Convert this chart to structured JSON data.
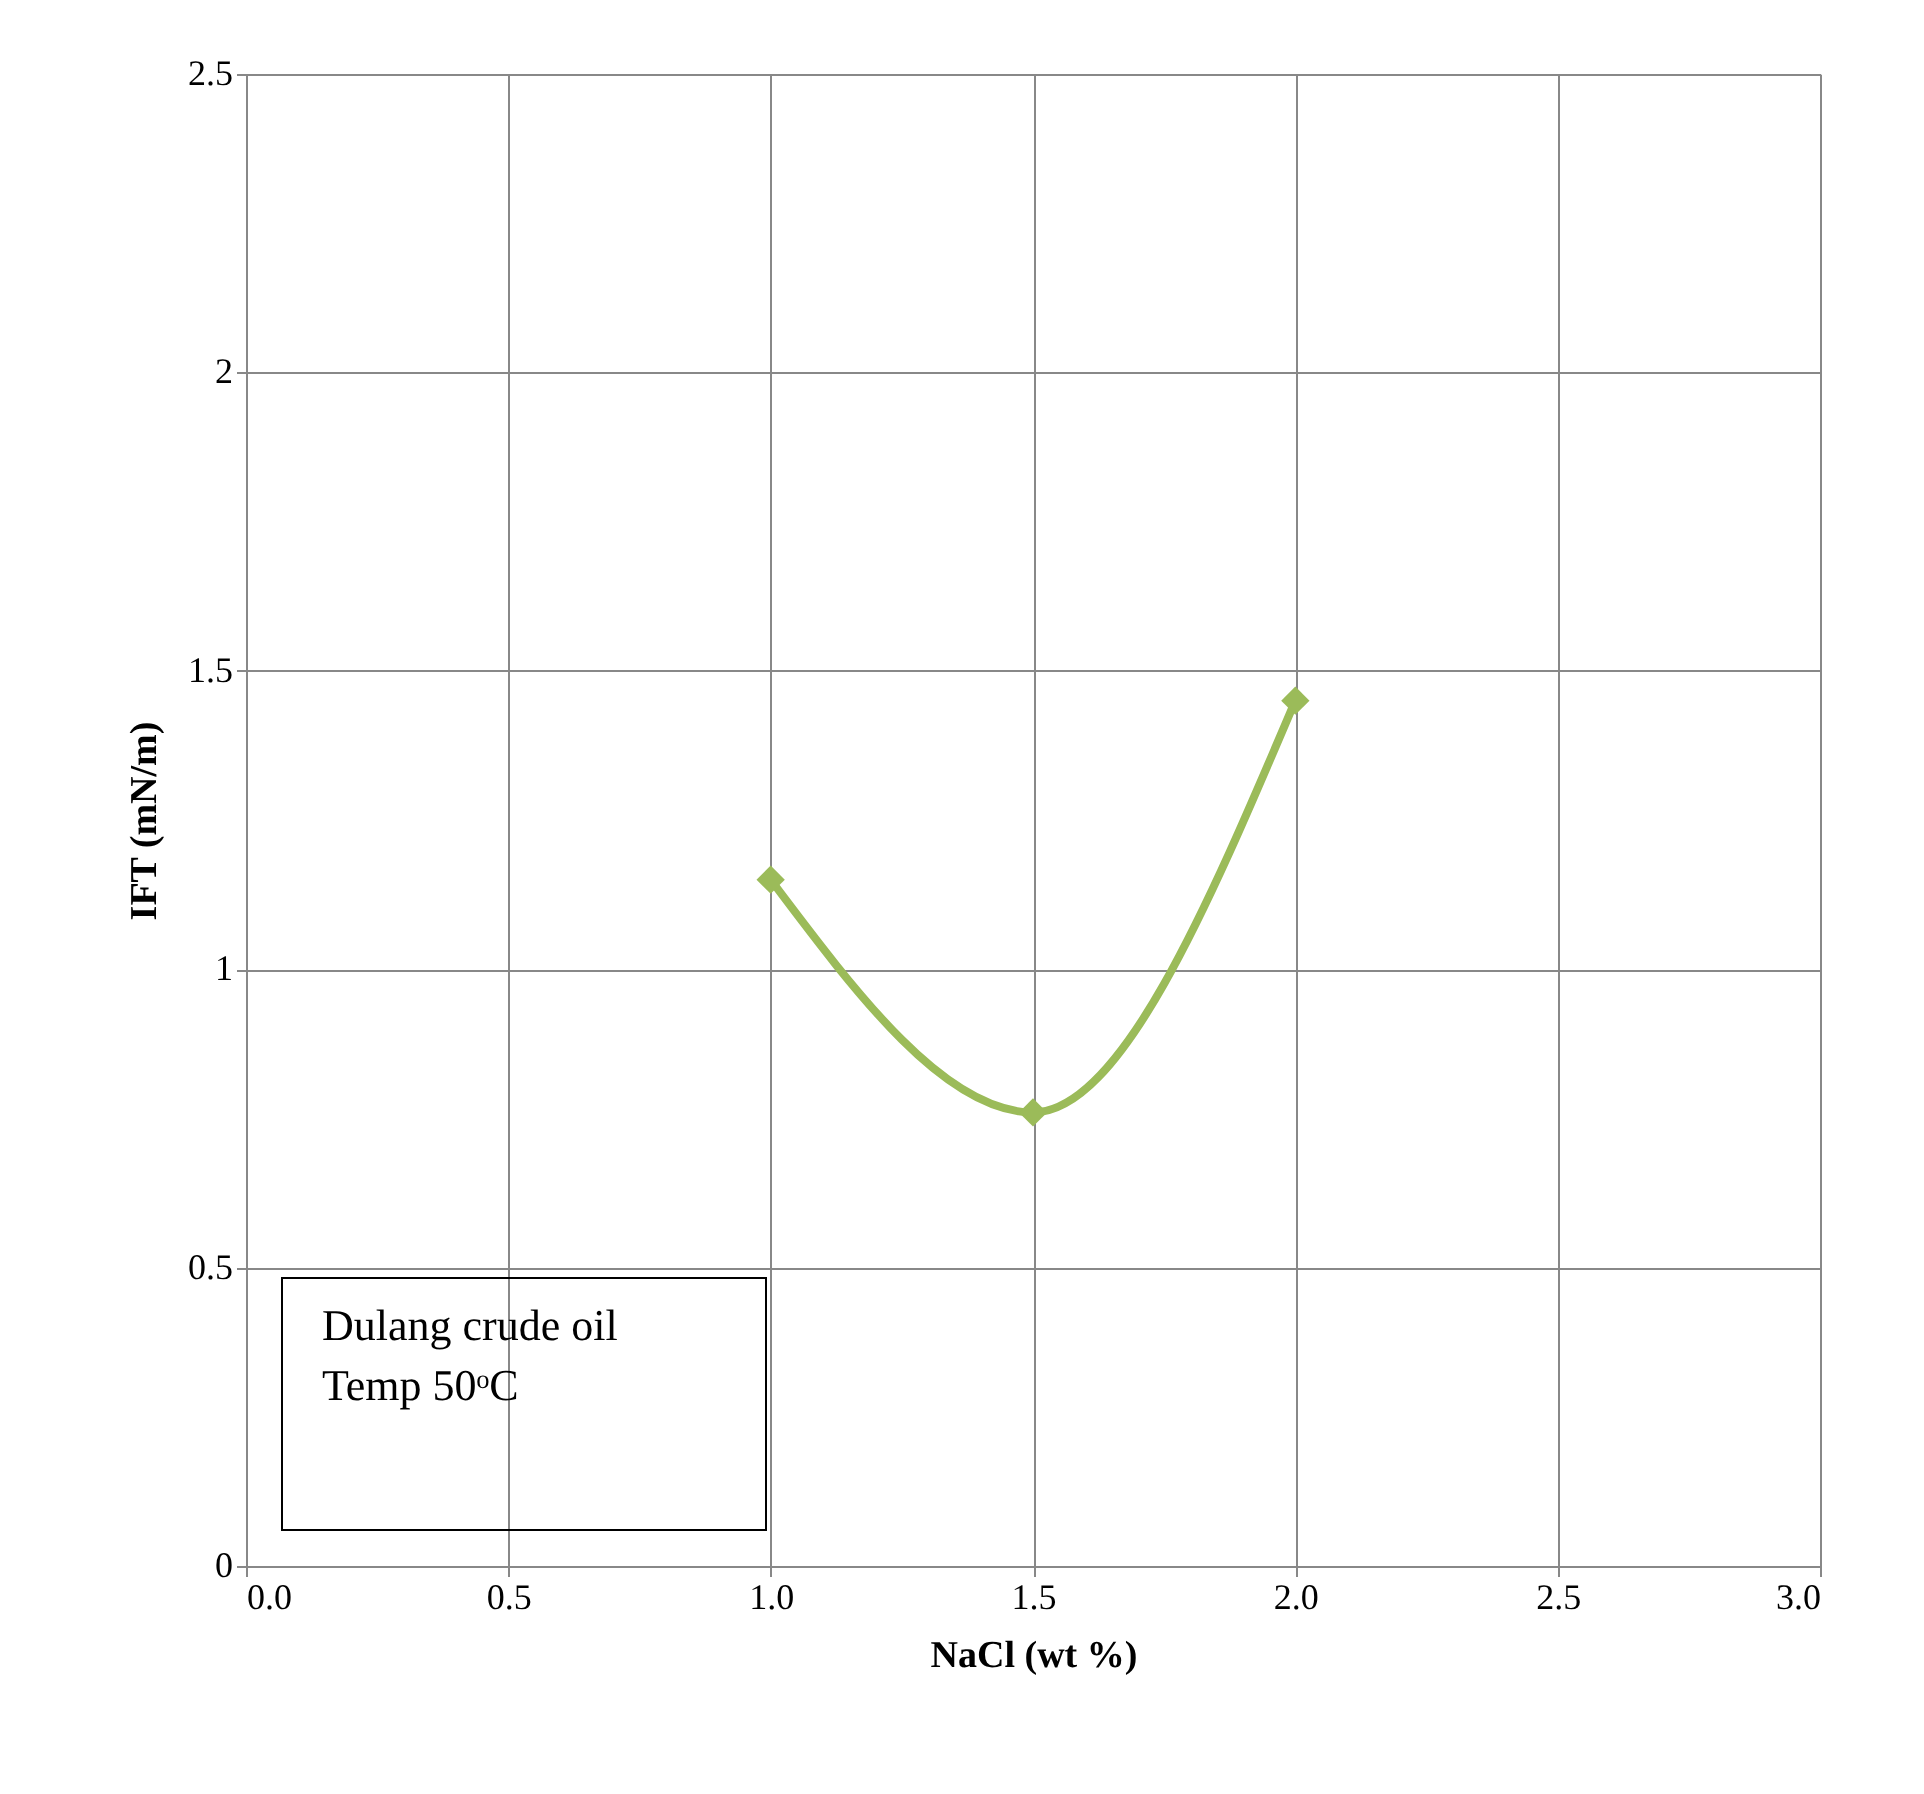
{
  "chart_data": {
    "type": "line",
    "xlabel": "NaCl (wt %)",
    "ylabel": "IFT (mN/m)",
    "x": [
      1.0,
      1.5,
      2.0
    ],
    "series": [
      {
        "color": "#9bbb59",
        "values": [
          1.15,
          0.76,
          1.45
        ]
      }
    ],
    "xlim": [
      0,
      3
    ],
    "xticks": [
      {
        "value": 0,
        "label": "0.0"
      },
      {
        "value": 0.5,
        "label": "0.5"
      },
      {
        "value": 1,
        "label": "1.0"
      },
      {
        "value": 1.5,
        "label": "1.5"
      },
      {
        "value": 2,
        "label": "2.0"
      },
      {
        "value": 2.5,
        "label": "2.5"
      },
      {
        "value": 3,
        "label": "3.0"
      }
    ],
    "ylim": [
      0,
      2.5
    ],
    "yticks": [
      0,
      0.5,
      1,
      1.5,
      2,
      2.5
    ],
    "grid": true,
    "marker": "diamond",
    "line_style": "solid",
    "annotations": [
      "Dulang crude oil",
      "Temp 50ᵒC"
    ]
  }
}
